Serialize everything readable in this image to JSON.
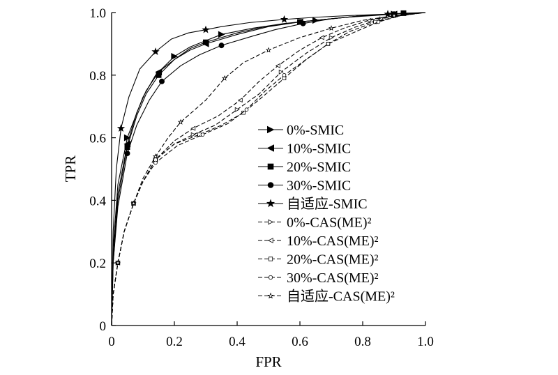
{
  "chart_data": {
    "type": "line",
    "xlabel": "FPR",
    "ylabel": "TPR",
    "xlim": [
      0,
      1.0
    ],
    "ylim": [
      0,
      1.0
    ],
    "x_ticks": [
      "0",
      "0.2",
      "0.4",
      "0.6",
      "0.8",
      "1.0"
    ],
    "y_ticks": [
      "0",
      "0.2",
      "0.4",
      "0.6",
      "0.8",
      "1.0"
    ],
    "grid": false,
    "legend_position": "center-right",
    "series": [
      {
        "name": "0%-SMIC",
        "line_style": "solid",
        "marker": "triangle-right",
        "filled": true,
        "x": [
          0,
          0.005,
          0.02,
          0.05,
          0.1,
          0.14,
          0.2,
          0.25,
          0.3,
          0.35,
          0.45,
          0.55,
          0.65,
          0.75,
          0.83,
          0.9,
          1.0
        ],
        "y": [
          0,
          0.25,
          0.45,
          0.6,
          0.73,
          0.8,
          0.86,
          0.89,
          0.91,
          0.93,
          0.95,
          0.965,
          0.975,
          0.985,
          0.99,
          0.995,
          1.0
        ]
      },
      {
        "name": "10%-SMIC",
        "line_style": "solid",
        "marker": "triangle-left",
        "filled": true,
        "x": [
          0,
          0.005,
          0.02,
          0.05,
          0.08,
          0.11,
          0.15,
          0.2,
          0.25,
          0.3,
          0.4,
          0.5,
          0.6,
          0.7,
          0.8,
          0.9,
          1.0
        ],
        "y": [
          0,
          0.22,
          0.42,
          0.58,
          0.68,
          0.75,
          0.81,
          0.85,
          0.88,
          0.9,
          0.93,
          0.955,
          0.97,
          0.98,
          0.99,
          0.995,
          1.0
        ]
      },
      {
        "name": "20%-SMIC",
        "line_style": "solid",
        "marker": "square",
        "filled": true,
        "x": [
          0,
          0.005,
          0.02,
          0.05,
          0.08,
          0.11,
          0.15,
          0.2,
          0.25,
          0.3,
          0.4,
          0.49,
          0.6,
          0.7,
          0.8,
          0.93,
          1.0
        ],
        "y": [
          0,
          0.2,
          0.4,
          0.57,
          0.67,
          0.74,
          0.8,
          0.85,
          0.885,
          0.905,
          0.935,
          0.955,
          0.97,
          0.98,
          0.99,
          0.998,
          1.0
        ]
      },
      {
        "name": "30%-SMIC",
        "line_style": "solid",
        "marker": "circle",
        "filled": true,
        "x": [
          0,
          0.005,
          0.02,
          0.05,
          0.08,
          0.12,
          0.16,
          0.22,
          0.28,
          0.35,
          0.45,
          0.52,
          0.61,
          0.7,
          0.8,
          0.9,
          1.0
        ],
        "y": [
          0,
          0.2,
          0.38,
          0.55,
          0.64,
          0.72,
          0.78,
          0.83,
          0.865,
          0.895,
          0.925,
          0.945,
          0.965,
          0.98,
          0.99,
          0.995,
          1.0
        ]
      },
      {
        "name": "自适应-SMIC",
        "line_style": "solid",
        "marker": "star",
        "filled": true,
        "x": [
          0,
          0.005,
          0.015,
          0.03,
          0.055,
          0.09,
          0.14,
          0.19,
          0.245,
          0.3,
          0.35,
          0.44,
          0.55,
          0.65,
          0.75,
          0.88,
          1.0
        ],
        "y": [
          0,
          0.3,
          0.5,
          0.63,
          0.73,
          0.82,
          0.875,
          0.915,
          0.935,
          0.945,
          0.955,
          0.968,
          0.978,
          0.985,
          0.99,
          0.995,
          1.0
        ]
      },
      {
        "name": "0%-CAS(ME)²",
        "line_style": "dashed",
        "marker": "triangle-right",
        "filled": false,
        "x": [
          0,
          0.005,
          0.02,
          0.04,
          0.07,
          0.1,
          0.14,
          0.2,
          0.26,
          0.33,
          0.4,
          0.47,
          0.54,
          0.62,
          0.7,
          0.78,
          0.86,
          0.94,
          1.0
        ],
        "y": [
          0,
          0.1,
          0.2,
          0.3,
          0.39,
          0.46,
          0.53,
          0.58,
          0.61,
          0.64,
          0.69,
          0.74,
          0.81,
          0.87,
          0.92,
          0.955,
          0.98,
          0.995,
          1.0
        ]
      },
      {
        "name": "10%-CAS(ME)²",
        "line_style": "dashed",
        "marker": "triangle-left",
        "filled": false,
        "x": [
          0,
          0.005,
          0.02,
          0.04,
          0.07,
          0.1,
          0.14,
          0.2,
          0.26,
          0.34,
          0.41,
          0.47,
          0.53,
          0.6,
          0.67,
          0.74,
          0.82,
          0.9,
          1.0
        ],
        "y": [
          0,
          0.1,
          0.2,
          0.3,
          0.39,
          0.46,
          0.53,
          0.59,
          0.63,
          0.67,
          0.72,
          0.78,
          0.83,
          0.88,
          0.92,
          0.95,
          0.975,
          0.99,
          1.0
        ]
      },
      {
        "name": "20%-CAS(ME)²",
        "line_style": "dashed",
        "marker": "square",
        "filled": false,
        "x": [
          0,
          0.005,
          0.02,
          0.04,
          0.07,
          0.1,
          0.14,
          0.2,
          0.28,
          0.35,
          0.42,
          0.48,
          0.55,
          0.62,
          0.69,
          0.76,
          0.84,
          0.92,
          1.0
        ],
        "y": [
          0,
          0.1,
          0.2,
          0.3,
          0.39,
          0.46,
          0.53,
          0.58,
          0.61,
          0.64,
          0.68,
          0.73,
          0.79,
          0.85,
          0.9,
          0.94,
          0.97,
          0.99,
          1.0
        ]
      },
      {
        "name": "30%-CAS(ME)²",
        "line_style": "dashed",
        "marker": "circle",
        "filled": false,
        "x": [
          0,
          0.005,
          0.02,
          0.04,
          0.07,
          0.1,
          0.14,
          0.21,
          0.29,
          0.37,
          0.43,
          0.49,
          0.55,
          0.62,
          0.69,
          0.78,
          0.85,
          0.92,
          1.0
        ],
        "y": [
          0,
          0.1,
          0.2,
          0.3,
          0.39,
          0.46,
          0.52,
          0.575,
          0.61,
          0.645,
          0.69,
          0.75,
          0.8,
          0.85,
          0.9,
          0.94,
          0.97,
          0.99,
          1.0
        ]
      },
      {
        "name": "自适应-CAS(ME)²",
        "line_style": "dashed",
        "marker": "star",
        "filled": false,
        "x": [
          0,
          0.005,
          0.02,
          0.04,
          0.07,
          0.1,
          0.14,
          0.18,
          0.22,
          0.3,
          0.36,
          0.42,
          0.5,
          0.6,
          0.7,
          0.8,
          0.9,
          1.0
        ],
        "y": [
          0,
          0.1,
          0.2,
          0.3,
          0.39,
          0.47,
          0.54,
          0.6,
          0.65,
          0.72,
          0.79,
          0.84,
          0.88,
          0.92,
          0.95,
          0.975,
          0.99,
          1.0
        ]
      }
    ]
  }
}
